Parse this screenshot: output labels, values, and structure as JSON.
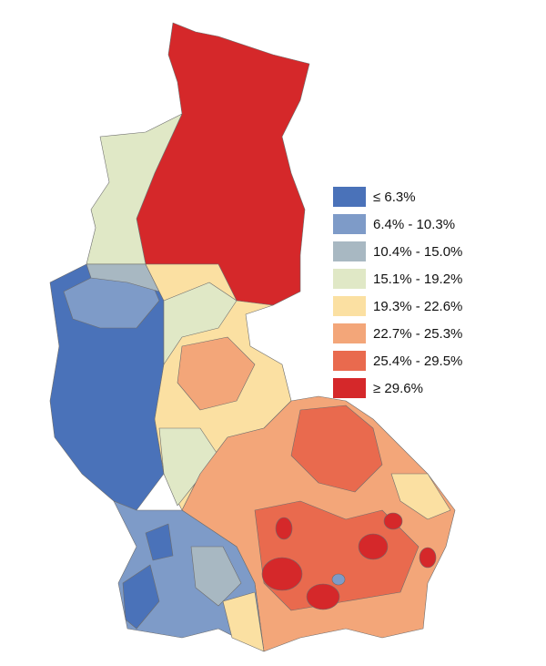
{
  "legend": {
    "items": [
      {
        "label": "≤ 6.3%",
        "color": "#4a72b9"
      },
      {
        "label": "6.4% - 10.3%",
        "color": "#7e9bc8"
      },
      {
        "label": "10.4% - 15.0%",
        "color": "#a8b8c2"
      },
      {
        "label": "15.1% - 19.2%",
        "color": "#e0e8c6"
      },
      {
        "label": "19.3% - 22.6%",
        "color": "#fbe0a2"
      },
      {
        "label": "22.7% - 25.3%",
        "color": "#f3a679"
      },
      {
        "label": "25.4% - 29.5%",
        "color": "#e96a4e"
      },
      {
        "label": "≥ 29.6%",
        "color": "#d5282a"
      }
    ]
  }
}
